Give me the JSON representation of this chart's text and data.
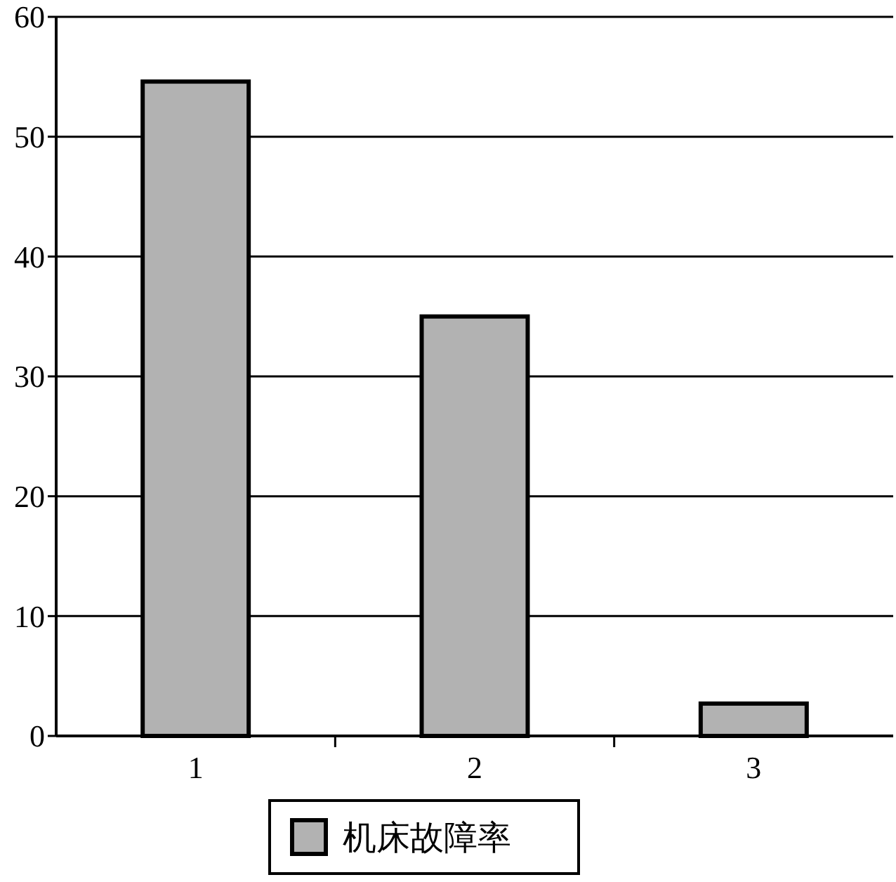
{
  "chart_data": {
    "type": "bar",
    "categories": [
      "1",
      "2",
      "3"
    ],
    "series": [
      {
        "name": "机床故障率",
        "color": "#b2b2b2",
        "values": [
          54.6,
          35,
          2.7
        ]
      }
    ],
    "ylim": [
      0,
      60
    ],
    "yticks": [
      0,
      10,
      20,
      30,
      40,
      50,
      60
    ],
    "grid": "y",
    "legend": "bottom"
  }
}
